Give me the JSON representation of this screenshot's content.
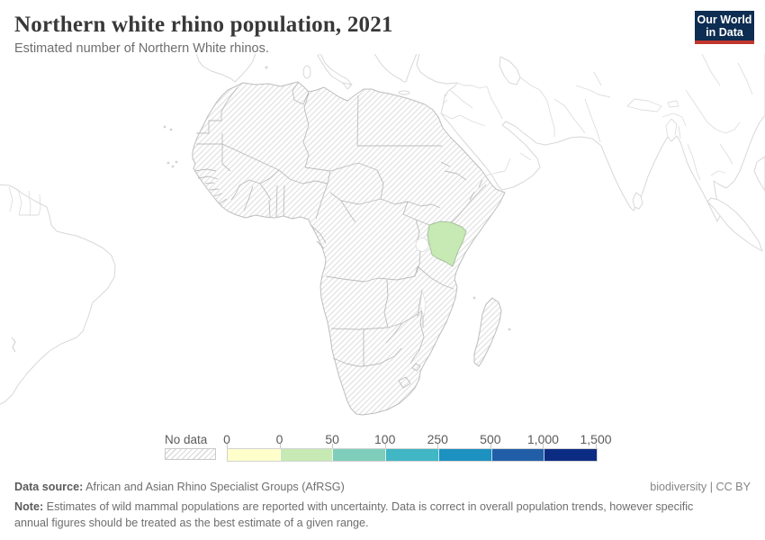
{
  "header": {
    "title": "Northern white rhino population, 2021",
    "subtitle": "Estimated number of Northern White rhinos."
  },
  "logo": {
    "line1": "Our World",
    "line2": "in Data",
    "bg_color": "#0d2d52",
    "accent_color": "#c0362c"
  },
  "map": {
    "highlighted_region": {
      "name": "Kenya",
      "color": "#c7e9b4"
    }
  },
  "legend": {
    "no_data_label": "No data",
    "ticks": [
      "0",
      "0",
      "50",
      "100",
      "250",
      "500",
      "1,000",
      "1,500"
    ],
    "colors": [
      "#ffffcc",
      "#c7e9b4",
      "#7fcdbb",
      "#41b6c4",
      "#1d91c0",
      "#225ea8",
      "#0c2c84"
    ]
  },
  "footer": {
    "source_label": "Data source:",
    "source_text": " African and Asian Rhino Specialist Groups (AfRSG)",
    "attribution": "biodiversity | CC BY",
    "note_label": "Note:",
    "note_text": " Estimates of wild mammal populations are reported with uncertainty. Data is correct in overall population trends, however specific annual figures should be treated as the best estimate of a given range."
  },
  "chart_data": {
    "type": "choropleth-map",
    "title": "Northern white rhino population, 2021",
    "unit": "Northern White rhinos",
    "bins": [
      {
        "range": "0",
        "color": "#ffffcc"
      },
      {
        "range": "0-50",
        "color": "#c7e9b4"
      },
      {
        "range": "50-100",
        "color": "#7fcdbb"
      },
      {
        "range": "100-250",
        "color": "#41b6c4"
      },
      {
        "range": "250-500",
        "color": "#1d91c0"
      },
      {
        "range": "500-1,000",
        "color": "#225ea8"
      },
      {
        "range": "1,000-1,500",
        "color": "#0c2c84"
      }
    ],
    "data_points": [
      {
        "entity": "Kenya",
        "bin": "0-50"
      }
    ],
    "no_data_style": "diagonal-hatch",
    "region_focus": "Africa"
  }
}
